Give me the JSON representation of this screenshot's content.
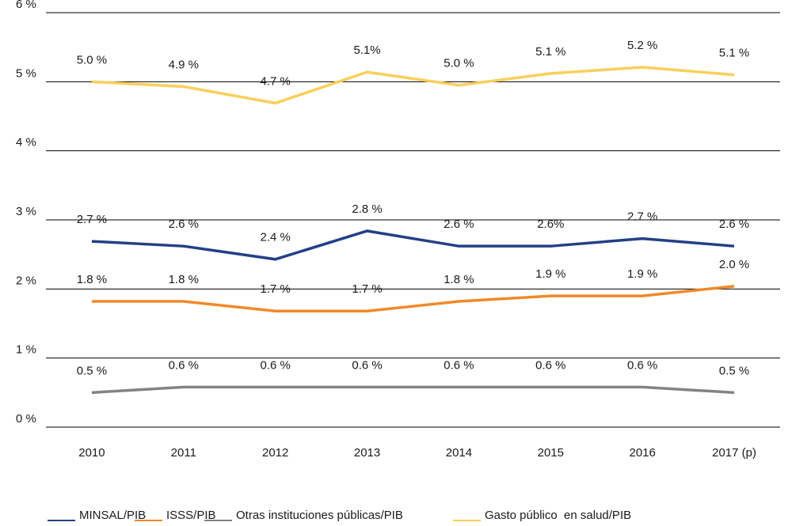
{
  "chart_data": {
    "type": "line",
    "categories": [
      "2010",
      "2011",
      "2012",
      "2013",
      "2014",
      "2015",
      "2016",
      "2017 (p)"
    ],
    "series": [
      {
        "name": "MINSAL/PIB",
        "color": "#233f86",
        "values": [
          2.69,
          2.62,
          2.43,
          2.84,
          2.62,
          2.62,
          2.73,
          2.62
        ],
        "value_labels": [
          "2.7 %",
          "2.6 %",
          "2.4 %",
          "2.8 %",
          "2.6 %",
          "2.6%",
          "2.7 %",
          "2.6 %"
        ]
      },
      {
        "name": "ISSS/PIB",
        "color": "#f0892a",
        "values": [
          1.82,
          1.82,
          1.68,
          1.68,
          1.82,
          1.9,
          1.9,
          2.04
        ],
        "value_labels": [
          "1.8 %",
          "1.8 %",
          "1.7 %",
          "1.7 %",
          "1.8 %",
          "1.9 %",
          "1.9 %",
          "2.0 %"
        ]
      },
      {
        "name": "Otras instituciones públicas/PIB",
        "color": "#838383",
        "values": [
          0.5,
          0.58,
          0.58,
          0.58,
          0.58,
          0.58,
          0.58,
          0.5
        ],
        "value_labels": [
          "0.5 %",
          "0.6 %",
          "0.6 %",
          "0.6 %",
          "0.6 %",
          "0.6 %",
          "0.6 %",
          "0.5 %"
        ]
      },
      {
        "name": "Gasto público  en salud/PIB",
        "color": "#f9cf5c",
        "values": [
          5.0,
          4.93,
          4.69,
          5.14,
          4.95,
          5.12,
          5.21,
          5.1
        ],
        "value_labels": [
          "5.0 %",
          "4.9 %",
          "4.7 %",
          "5.1%",
          "5.0 %",
          "5.1 %",
          "5.2 %",
          "5.1 %"
        ]
      }
    ],
    "ylim": [
      0,
      6
    ],
    "yticks": [
      {
        "value": 0,
        "label": "0 %"
      },
      {
        "value": 1,
        "label": "1 %"
      },
      {
        "value": 2,
        "label": "2 %"
      },
      {
        "value": 3,
        "label": "3 %"
      },
      {
        "value": 4,
        "label": "4 %"
      },
      {
        "value": 5,
        "label": "5 %"
      },
      {
        "value": 6,
        "label": "6 %"
      }
    ],
    "grid": true,
    "legend": "bottom"
  }
}
